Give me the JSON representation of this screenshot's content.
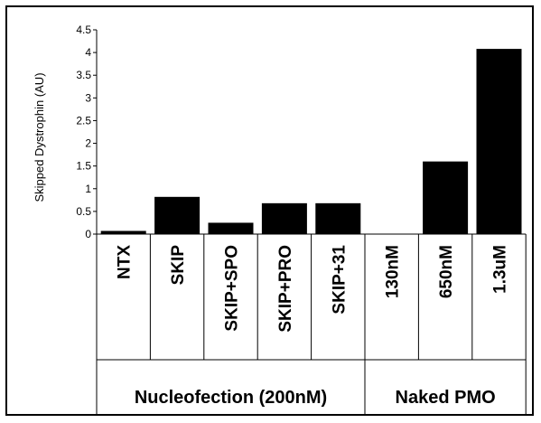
{
  "chart_data": {
    "type": "bar",
    "categories": [
      "NTX",
      "SKIP",
      "SKIP+SPO",
      "SKIP+PRO",
      "SKIP+31",
      "130nM",
      "650nM",
      "1.3uM"
    ],
    "values": [
      0.07,
      0.82,
      0.25,
      0.68,
      0.68,
      0,
      1.6,
      4.08
    ],
    "groups": [
      {
        "label": "Nucleofection (200nM)",
        "span": [
          0,
          4
        ]
      },
      {
        "label": "Naked PMO",
        "span": [
          5,
          7
        ]
      }
    ],
    "ylabel": "Skipped Dystrophin (AU)",
    "xlabel": "",
    "ylim": [
      0,
      4.5
    ],
    "yticks": [
      0,
      0.5,
      1,
      1.5,
      2,
      2.5,
      3,
      3.5,
      4,
      4.5
    ],
    "ytick_labels": [
      "0",
      "0.5",
      "1",
      "1.5",
      "2",
      "2.5",
      "3",
      "3.5",
      "4",
      "4.5"
    ],
    "bar_color": "#000000",
    "grid": false,
    "legend": "none"
  }
}
